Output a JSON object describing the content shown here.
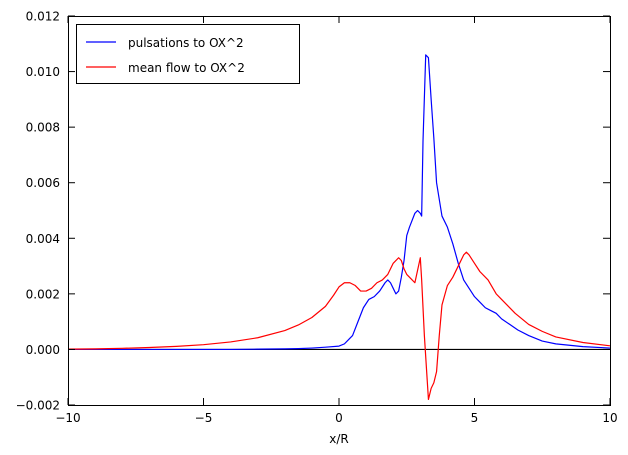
{
  "chart_data": {
    "type": "line",
    "title": "",
    "xlabel": "x/R",
    "ylabel": "",
    "xlim": [
      -10,
      10
    ],
    "ylim": [
      -0.002,
      0.012
    ],
    "x_ticks": [
      -10,
      -5,
      0,
      5,
      10
    ],
    "x_tick_labels": [
      "−10",
      "−5",
      "0",
      "5",
      "10"
    ],
    "y_ticks": [
      -0.002,
      0.0,
      0.002,
      0.004,
      0.006,
      0.008,
      0.01,
      0.012
    ],
    "y_tick_labels": [
      "−0.002",
      "0.000",
      "0.002",
      "0.004",
      "0.006",
      "0.008",
      "0.010",
      "0.012"
    ],
    "grid": false,
    "legend_position": "top-left",
    "zero_line": true,
    "series": [
      {
        "name": "pulsations to OX^2",
        "color": "#0000ff",
        "x": [
          -10,
          -8,
          -6,
          -4,
          -3,
          -2,
          -1.5,
          -1,
          -0.5,
          0,
          0.2,
          0.4,
          0.5,
          0.7,
          0.9,
          1.1,
          1.3,
          1.5,
          1.7,
          1.8,
          1.9,
          2.0,
          2.1,
          2.2,
          2.3,
          2.4,
          2.5,
          2.6,
          2.8,
          2.9,
          3.0,
          3.05,
          3.1,
          3.2,
          3.3,
          3.4,
          3.5,
          3.6,
          3.8,
          4.0,
          4.2,
          4.4,
          4.6,
          4.8,
          5.0,
          5.2,
          5.4,
          5.6,
          5.8,
          6.0,
          6.3,
          6.6,
          7.0,
          7.5,
          8.0,
          9.0,
          10.0
        ],
        "values": [
          0.0,
          0.0,
          0.0,
          0.0,
          1e-05,
          2e-05,
          3e-05,
          5e-05,
          8e-05,
          0.00012,
          0.0002,
          0.0004,
          0.0005,
          0.001,
          0.0015,
          0.0018,
          0.0019,
          0.0021,
          0.0024,
          0.0025,
          0.0024,
          0.0022,
          0.002,
          0.0021,
          0.0026,
          0.0032,
          0.0041,
          0.0044,
          0.0049,
          0.005,
          0.0049,
          0.0048,
          0.0075,
          0.0106,
          0.0105,
          0.009,
          0.0076,
          0.006,
          0.0048,
          0.0044,
          0.0038,
          0.0031,
          0.0025,
          0.0022,
          0.0019,
          0.0017,
          0.0015,
          0.0014,
          0.0013,
          0.0011,
          0.0009,
          0.0007,
          0.0005,
          0.0003,
          0.0002,
          0.0001,
          5e-05
        ]
      },
      {
        "name": "mean flow to OX^2",
        "color": "#ff0000",
        "x": [
          -10,
          -9,
          -8,
          -7,
          -6,
          -5,
          -4,
          -3,
          -2,
          -1.5,
          -1,
          -0.5,
          -0.2,
          0,
          0.2,
          0.4,
          0.6,
          0.8,
          1.0,
          1.2,
          1.4,
          1.6,
          1.8,
          2.0,
          2.2,
          2.3,
          2.4,
          2.5,
          2.6,
          2.8,
          3.0,
          3.05,
          3.15,
          3.3,
          3.4,
          3.5,
          3.6,
          3.7,
          3.8,
          4.0,
          4.2,
          4.4,
          4.6,
          4.7,
          4.8,
          5.0,
          5.2,
          5.5,
          5.8,
          6.0,
          6.5,
          7.0,
          7.5,
          8.0,
          9.0,
          10.0
        ],
        "values": [
          1e-05,
          2e-05,
          4e-05,
          7e-05,
          0.00011,
          0.00017,
          0.00027,
          0.00042,
          0.00068,
          0.00088,
          0.00115,
          0.00155,
          0.00195,
          0.00225,
          0.0024,
          0.0024,
          0.0023,
          0.0021,
          0.0021,
          0.0022,
          0.0024,
          0.0025,
          0.0027,
          0.0031,
          0.0033,
          0.0032,
          0.0029,
          0.0027,
          0.0026,
          0.0024,
          0.0033,
          0.0025,
          0.0005,
          -0.0018,
          -0.0014,
          -0.0012,
          -0.0008,
          0.0005,
          0.0016,
          0.0023,
          0.0026,
          0.003,
          0.0034,
          0.0035,
          0.0034,
          0.0031,
          0.0028,
          0.0025,
          0.002,
          0.0018,
          0.0013,
          0.0009,
          0.00065,
          0.00045,
          0.00025,
          0.00013
        ]
      }
    ]
  }
}
